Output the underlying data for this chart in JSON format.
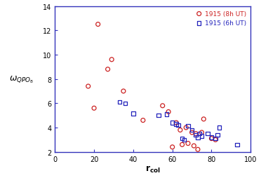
{
  "circles_x": [
    17,
    20,
    22,
    27,
    29,
    35,
    45,
    55,
    58,
    60,
    62,
    64,
    65,
    67,
    68,
    70,
    71,
    72,
    73,
    75,
    76,
    80,
    82
  ],
  "circles_y": [
    7.4,
    5.6,
    12.5,
    8.8,
    9.6,
    7.0,
    4.6,
    5.8,
    5.3,
    2.4,
    4.4,
    3.8,
    2.6,
    4.0,
    2.7,
    3.6,
    2.5,
    3.5,
    2.2,
    3.6,
    4.7,
    3.1,
    3.0
  ],
  "squares_x": [
    33,
    36,
    40,
    53,
    57,
    60,
    62,
    63,
    65,
    66,
    68,
    70,
    72,
    73,
    74,
    75,
    78,
    80,
    82,
    83,
    84,
    93
  ],
  "squares_y": [
    6.1,
    6.0,
    5.15,
    5.0,
    5.1,
    4.4,
    4.3,
    4.2,
    3.1,
    3.0,
    4.15,
    3.8,
    3.4,
    3.2,
    3.5,
    3.3,
    3.5,
    3.2,
    3.1,
    3.4,
    4.0,
    2.6
  ],
  "circle_color": "#cc2222",
  "square_color": "#2222bb",
  "legend_circle": "1915 (8h UT)",
  "legend_square": "1915 (6h UT)",
  "xlim": [
    0,
    100
  ],
  "ylim": [
    2,
    14
  ],
  "yticks": [
    2,
    4,
    6,
    8,
    10,
    12,
    14
  ],
  "xticks": [
    0,
    20,
    40,
    60,
    80,
    100
  ],
  "spine_color": "#3333bb",
  "background_color": "#ffffff",
  "tick_color": "#3333bb"
}
